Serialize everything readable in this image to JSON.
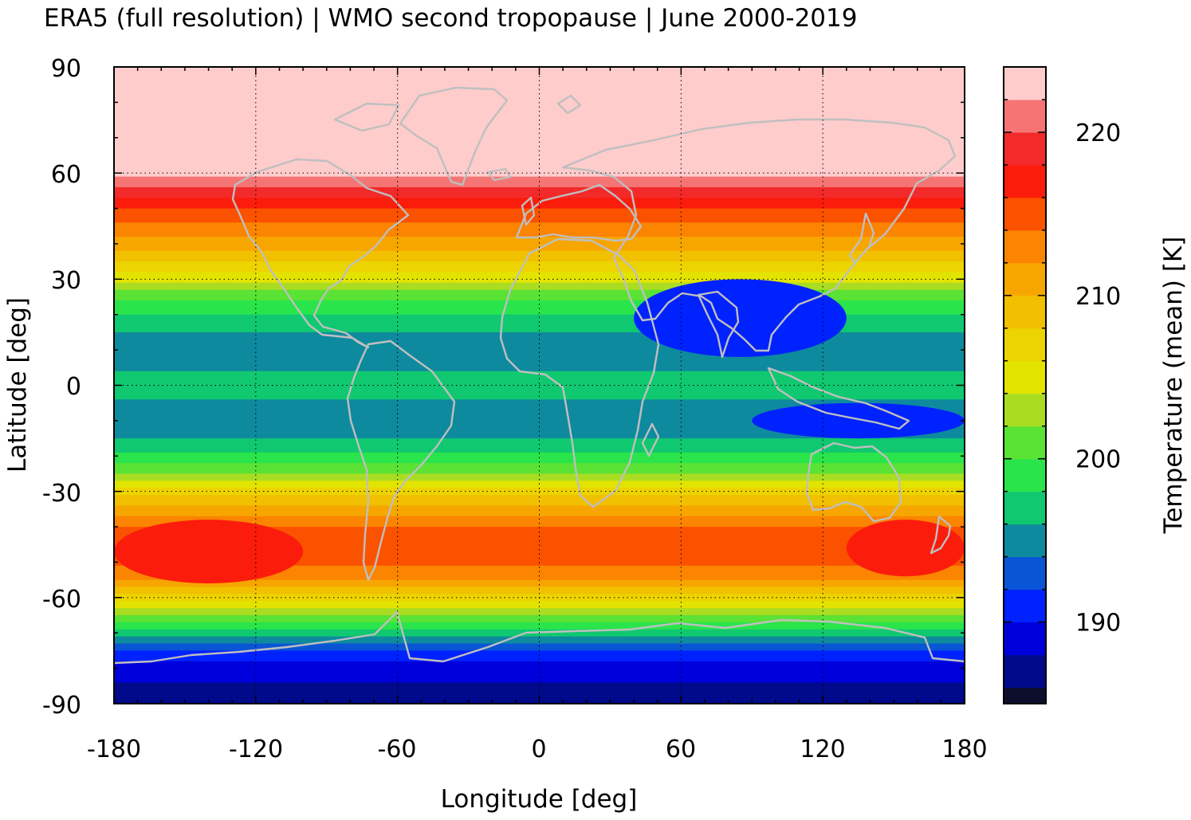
{
  "title": "ERA5 (full resolution) | WMO second tropopause | June 2000-2019",
  "chart_data": {
    "type": "heatmap",
    "title": "ERA5 (full resolution) | WMO second tropopause | June 2000-2019",
    "xlabel": "Longitude [deg]",
    "ylabel": "Latitude [deg]",
    "xlim": [
      -180,
      180
    ],
    "ylim": [
      -90,
      90
    ],
    "x_ticks": [
      "-180",
      "-120",
      "-60",
      "0",
      "60",
      "120",
      "180"
    ],
    "y_ticks": [
      "90",
      "60",
      "30",
      "0",
      "-30",
      "-60",
      "-90"
    ],
    "grid": true,
    "coastlines": true,
    "colorbar": {
      "label": "Temperature (mean) [K]",
      "range": [
        185,
        224
      ],
      "ticks": [
        "190",
        "200",
        "210",
        "220"
      ],
      "levels": [
        {
          "from": 185,
          "to": 186,
          "color": "#0d0d2e"
        },
        {
          "from": 186,
          "to": 188,
          "color": "#000a8a"
        },
        {
          "from": 188,
          "to": 190,
          "color": "#0000dd"
        },
        {
          "from": 190,
          "to": 192,
          "color": "#0022ff"
        },
        {
          "from": 192,
          "to": 194,
          "color": "#0a55d6"
        },
        {
          "from": 194,
          "to": 196,
          "color": "#0e8a9e"
        },
        {
          "from": 196,
          "to": 198,
          "color": "#10c870"
        },
        {
          "from": 198,
          "to": 200,
          "color": "#2ae44c"
        },
        {
          "from": 200,
          "to": 202,
          "color": "#5ae234"
        },
        {
          "from": 202,
          "to": 204,
          "color": "#aadd22"
        },
        {
          "from": 204,
          "to": 206,
          "color": "#e2e400"
        },
        {
          "from": 206,
          "to": 208,
          "color": "#ecd400"
        },
        {
          "from": 208,
          "to": 210,
          "color": "#f1c000"
        },
        {
          "from": 210,
          "to": 212,
          "color": "#f7a600"
        },
        {
          "from": 212,
          "to": 214,
          "color": "#fb8400"
        },
        {
          "from": 214,
          "to": 216,
          "color": "#fb5200"
        },
        {
          "from": 216,
          "to": 218,
          "color": "#fc1c0c"
        },
        {
          "from": 218,
          "to": 220,
          "color": "#f22a2a"
        },
        {
          "from": 220,
          "to": 222,
          "color": "#f57575"
        },
        {
          "from": 222,
          "to": 224,
          "color": "#ffcccc"
        }
      ]
    },
    "zonal_profile": [
      {
        "lat": 90,
        "temp": 223
      },
      {
        "lat": 80,
        "temp": 223
      },
      {
        "lat": 70,
        "temp": 223
      },
      {
        "lat": 62,
        "temp": 223
      },
      {
        "lat": 57,
        "temp": 221
      },
      {
        "lat": 52,
        "temp": 217
      },
      {
        "lat": 48,
        "temp": 215
      },
      {
        "lat": 44,
        "temp": 213
      },
      {
        "lat": 40,
        "temp": 211
      },
      {
        "lat": 36,
        "temp": 209
      },
      {
        "lat": 32,
        "temp": 206
      },
      {
        "lat": 28,
        "temp": 203
      },
      {
        "lat": 24,
        "temp": 200
      },
      {
        "lat": 18,
        "temp": 197
      },
      {
        "lat": 12,
        "temp": 195
      },
      {
        "lat": 6,
        "temp": 195
      },
      {
        "lat": 2,
        "temp": 197
      },
      {
        "lat": -2,
        "temp": 197
      },
      {
        "lat": -6,
        "temp": 195
      },
      {
        "lat": -12,
        "temp": 195
      },
      {
        "lat": -18,
        "temp": 197
      },
      {
        "lat": -22,
        "temp": 200
      },
      {
        "lat": -26,
        "temp": 203
      },
      {
        "lat": -30,
        "temp": 207
      },
      {
        "lat": -34,
        "temp": 210
      },
      {
        "lat": -38,
        "temp": 213
      },
      {
        "lat": -42,
        "temp": 215
      },
      {
        "lat": -48,
        "temp": 215
      },
      {
        "lat": -54,
        "temp": 213
      },
      {
        "lat": -58,
        "temp": 209
      },
      {
        "lat": -62,
        "temp": 205
      },
      {
        "lat": -66,
        "temp": 201
      },
      {
        "lat": -70,
        "temp": 197
      },
      {
        "lat": -74,
        "temp": 193
      },
      {
        "lat": -78,
        "temp": 190
      },
      {
        "lat": -84,
        "temp": 188
      },
      {
        "lat": -90,
        "temp": 187
      }
    ],
    "regional_features": [
      {
        "name": "asian-monsoon-cold",
        "lon_range": [
          40,
          130
        ],
        "lat_range": [
          8,
          30
        ],
        "temp": 191
      },
      {
        "name": "south-pacific-warm",
        "lon_range": [
          -180,
          -100
        ],
        "lat_range": [
          -56,
          -38
        ],
        "temp": 217
      },
      {
        "name": "south-indian-pacific-warm",
        "lon_range": [
          130,
          180
        ],
        "lat_range": [
          -54,
          -38
        ],
        "temp": 217
      },
      {
        "name": "maritime-continent-cold",
        "lon_range": [
          90,
          180
        ],
        "lat_range": [
          -15,
          -5
        ],
        "temp": 191
      }
    ]
  }
}
